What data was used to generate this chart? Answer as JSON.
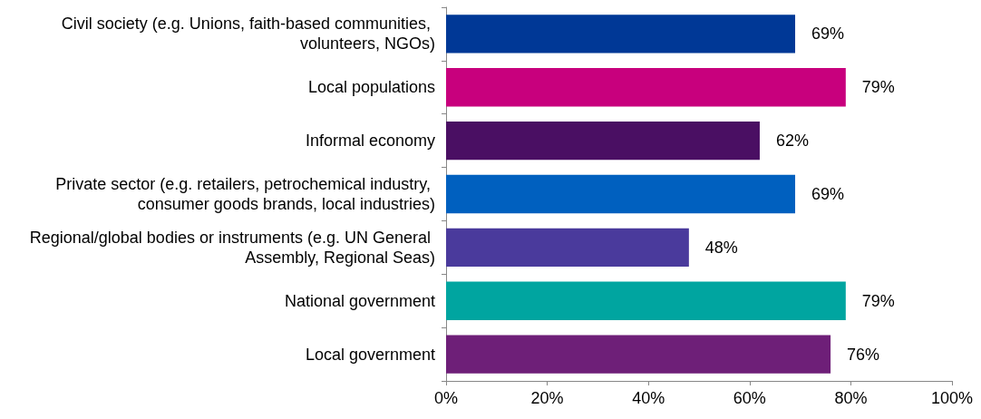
{
  "chart_data": {
    "type": "bar",
    "orientation": "horizontal",
    "categories": [
      "Civil society (e.g. Unions, faith-based communities, volunteers, NGOs)",
      "Local populations",
      "Informal economy",
      "Private sector (e.g. retailers, petrochemical industry, consumer goods brands, local industries)",
      "Regional/global bodies or instruments (e.g. UN General Assembly, Regional Seas)",
      "National government",
      "Local government"
    ],
    "values": [
      69,
      79,
      62,
      69,
      48,
      79,
      76
    ],
    "colors": [
      "#003896",
      "#c8007d",
      "#4a0f63",
      "#0060bf",
      "#4a3a9c",
      "#00a5a0",
      "#6e1f78"
    ],
    "value_labels": [
      "69%",
      "79%",
      "62%",
      "69%",
      "48%",
      "79%",
      "76%"
    ],
    "xlim": [
      0,
      100
    ],
    "xticks": [
      {
        "value": 0,
        "label": "0%"
      },
      {
        "value": 20,
        "label": "20%"
      },
      {
        "value": 40,
        "label": "40%"
      },
      {
        "value": 60,
        "label": "60%"
      },
      {
        "value": 80,
        "label": "80%"
      },
      {
        "value": 100,
        "label": "100%"
      }
    ],
    "grid": false
  }
}
